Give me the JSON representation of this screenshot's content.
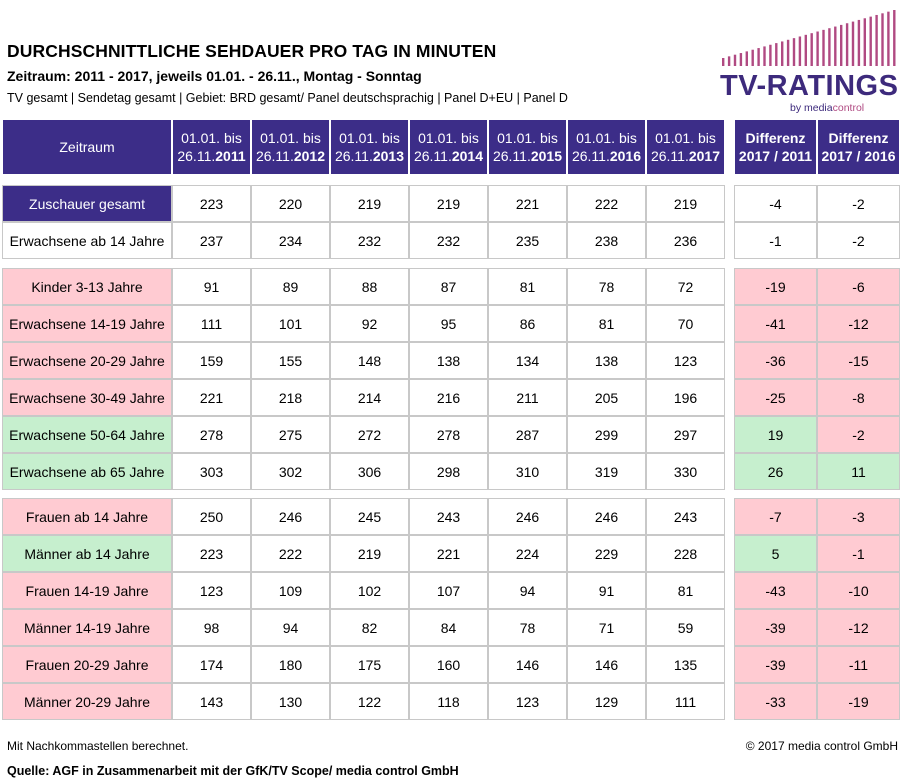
{
  "header": {
    "title": "DURCHSCHNITTLICHE SEHDAUER PRO TAG IN MINUTEN",
    "subtitle": "Zeitraum: 2011 - 2017,  jeweils 01.01. - 26.11., Montag - Sonntag",
    "filters": "TV gesamt | Sendetag gesamt | Gebiet: BRD gesamt/ Panel deutschsprachig | Panel D+EU | Panel D"
  },
  "logo": {
    "text": "TV-RATINGS",
    "sub_prefix": "by media",
    "sub_suffix": "control",
    "bar_color": "#b04a82",
    "text_color": "#3d2a7c"
  },
  "table": {
    "corner_label": "Zeitraum",
    "year_columns": [
      {
        "line1": "01.01. bis",
        "prefix": "26.11.",
        "year": "2011"
      },
      {
        "line1": "01.01. bis",
        "prefix": "26.11.",
        "year": "2012"
      },
      {
        "line1": "01.01. bis",
        "prefix": "26.11.",
        "year": "2013"
      },
      {
        "line1": "01.01. bis",
        "prefix": "26.11.",
        "year": "2014"
      },
      {
        "line1": "01.01. bis",
        "prefix": "26.11.",
        "year": "2015"
      },
      {
        "line1": "01.01. bis",
        "prefix": "26.11.",
        "year": "2016"
      },
      {
        "line1": "01.01. bis",
        "prefix": "26.11.",
        "year": "2017"
      }
    ],
    "diff_columns": [
      {
        "line1": "Differenz",
        "line2": "2017 / 2011"
      },
      {
        "line1": "Differenz",
        "line2": "2017 / 2016"
      }
    ],
    "groups": [
      {
        "rows": [
          {
            "label": "Zuschauer gesamt",
            "label_style": "dark",
            "values": [
              "223",
              "220",
              "219",
              "219",
              "221",
              "222",
              "219"
            ],
            "diffs": [
              "-4",
              "-2"
            ],
            "diff_styles": [
              "white",
              "white"
            ]
          },
          {
            "label": "Erwachsene ab 14 Jahre",
            "label_style": "white",
            "values": [
              "237",
              "234",
              "232",
              "232",
              "235",
              "238",
              "236"
            ],
            "diffs": [
              "-1",
              "-2"
            ],
            "diff_styles": [
              "white",
              "white"
            ]
          }
        ]
      },
      {
        "rows": [
          {
            "label": "Kinder 3-13 Jahre",
            "label_style": "pink",
            "values": [
              "91",
              "89",
              "88",
              "87",
              "81",
              "78",
              "72"
            ],
            "diffs": [
              "-19",
              "-6"
            ],
            "diff_styles": [
              "pink",
              "pink"
            ]
          },
          {
            "label": "Erwachsene 14-19 Jahre",
            "label_style": "pink",
            "values": [
              "111",
              "101",
              "92",
              "95",
              "86",
              "81",
              "70"
            ],
            "diffs": [
              "-41",
              "-12"
            ],
            "diff_styles": [
              "pink",
              "pink"
            ]
          },
          {
            "label": "Erwachsene 20-29 Jahre",
            "label_style": "pink",
            "values": [
              "159",
              "155",
              "148",
              "138",
              "134",
              "138",
              "123"
            ],
            "diffs": [
              "-36",
              "-15"
            ],
            "diff_styles": [
              "pink",
              "pink"
            ]
          },
          {
            "label": "Erwachsene 30-49 Jahre",
            "label_style": "pink",
            "values": [
              "221",
              "218",
              "214",
              "216",
              "211",
              "205",
              "196"
            ],
            "diffs": [
              "-25",
              "-8"
            ],
            "diff_styles": [
              "pink",
              "pink"
            ]
          },
          {
            "label": "Erwachsene 50-64 Jahre",
            "label_style": "green",
            "values": [
              "278",
              "275",
              "272",
              "278",
              "287",
              "299",
              "297"
            ],
            "diffs": [
              "19",
              "-2"
            ],
            "diff_styles": [
              "green",
              "pink"
            ]
          },
          {
            "label": "Erwachsene ab 65 Jahre",
            "label_style": "green",
            "values": [
              "303",
              "302",
              "306",
              "298",
              "310",
              "319",
              "330"
            ],
            "diffs": [
              "26",
              "11"
            ],
            "diff_styles": [
              "green",
              "green"
            ]
          }
        ]
      },
      {
        "rows": [
          {
            "label": "Frauen ab 14 Jahre",
            "label_style": "pink",
            "values": [
              "250",
              "246",
              "245",
              "243",
              "246",
              "246",
              "243"
            ],
            "diffs": [
              "-7",
              "-3"
            ],
            "diff_styles": [
              "pink",
              "pink"
            ]
          },
          {
            "label": "Männer ab 14 Jahre",
            "label_style": "green",
            "values": [
              "223",
              "222",
              "219",
              "221",
              "224",
              "229",
              "228"
            ],
            "diffs": [
              "5",
              "-1"
            ],
            "diff_styles": [
              "green",
              "pink"
            ]
          },
          {
            "label": "Frauen 14-19 Jahre",
            "label_style": "pink",
            "values": [
              "123",
              "109",
              "102",
              "107",
              "94",
              "91",
              "81"
            ],
            "diffs": [
              "-43",
              "-10"
            ],
            "diff_styles": [
              "pink",
              "pink"
            ]
          },
          {
            "label": "Männer 14-19 Jahre",
            "label_style": "pink",
            "values": [
              "98",
              "94",
              "82",
              "84",
              "78",
              "71",
              "59"
            ],
            "diffs": [
              "-39",
              "-12"
            ],
            "diff_styles": [
              "pink",
              "pink"
            ]
          },
          {
            "label": "Frauen 20-29 Jahre",
            "label_style": "pink",
            "values": [
              "174",
              "180",
              "175",
              "160",
              "146",
              "146",
              "135"
            ],
            "diffs": [
              "-39",
              "-11"
            ],
            "diff_styles": [
              "pink",
              "pink"
            ]
          },
          {
            "label": "Männer 20-29 Jahre",
            "label_style": "pink",
            "values": [
              "143",
              "130",
              "122",
              "118",
              "123",
              "129",
              "111"
            ],
            "diffs": [
              "-33",
              "-19"
            ],
            "diff_styles": [
              "pink",
              "pink"
            ]
          }
        ]
      }
    ]
  },
  "footer": {
    "note": "Mit Nachkommastellen berechnet.",
    "copyright": "© 2017 media control GmbH",
    "source": "Quelle: AGF in Zusammenarbeit mit der GfK/TV Scope/ media control GmbH"
  }
}
